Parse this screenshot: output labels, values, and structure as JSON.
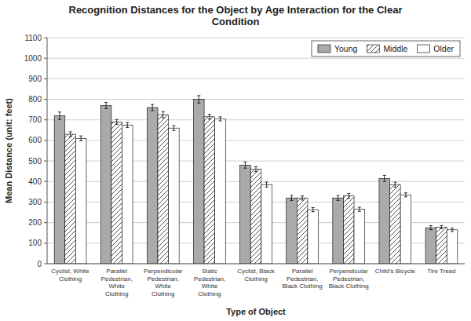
{
  "chart_data": {
    "type": "bar",
    "title": "Recognition Distances for the Object by Age Interaction for the Clear\nCondition",
    "x_label": "Type of Object",
    "y_label": "Mean Distance (unit: feet)",
    "categories": [
      "Cyclist, White\nClothing",
      "Parallel\nPedestrian,\nWhite\nClothing",
      "Perpendicular\nPedestrian,\nWhite\nClothing",
      "Static\nPedestrian,\nWhite\nClothing",
      "Cyclist, Black\nClothing",
      "Parallel\nPedestrian,\nBlack Clothing",
      "Perpendicular\nPedestrian,\nBlack Clothing",
      "Child's Bicycle",
      "Tire Tread"
    ],
    "series": [
      {
        "name": "Young",
        "color": "#aaaaaa",
        "values": [
          720,
          770,
          760,
          800,
          480,
          320,
          320,
          415,
          175
        ],
        "errors": [
          18,
          15,
          15,
          18,
          15,
          12,
          12,
          15,
          10
        ]
      },
      {
        "name": "Middle",
        "color": "white",
        "values": [
          630,
          690,
          725,
          715,
          460,
          320,
          330,
          385,
          178
        ],
        "errors": [
          12,
          12,
          15,
          12,
          12,
          10,
          12,
          12,
          8
        ]
      },
      {
        "name": "Older",
        "color": "white",
        "values": [
          610,
          675,
          660,
          705,
          385,
          263,
          265,
          335,
          165
        ],
        "errors": [
          12,
          12,
          12,
          10,
          12,
          10,
          10,
          10,
          8
        ]
      }
    ],
    "ylim": [
      0,
      1100
    ],
    "yticks": [
      0,
      100,
      200,
      300,
      400,
      500,
      600,
      700,
      800,
      900,
      1000,
      1100
    ],
    "grid": true,
    "legend": "upper right"
  }
}
